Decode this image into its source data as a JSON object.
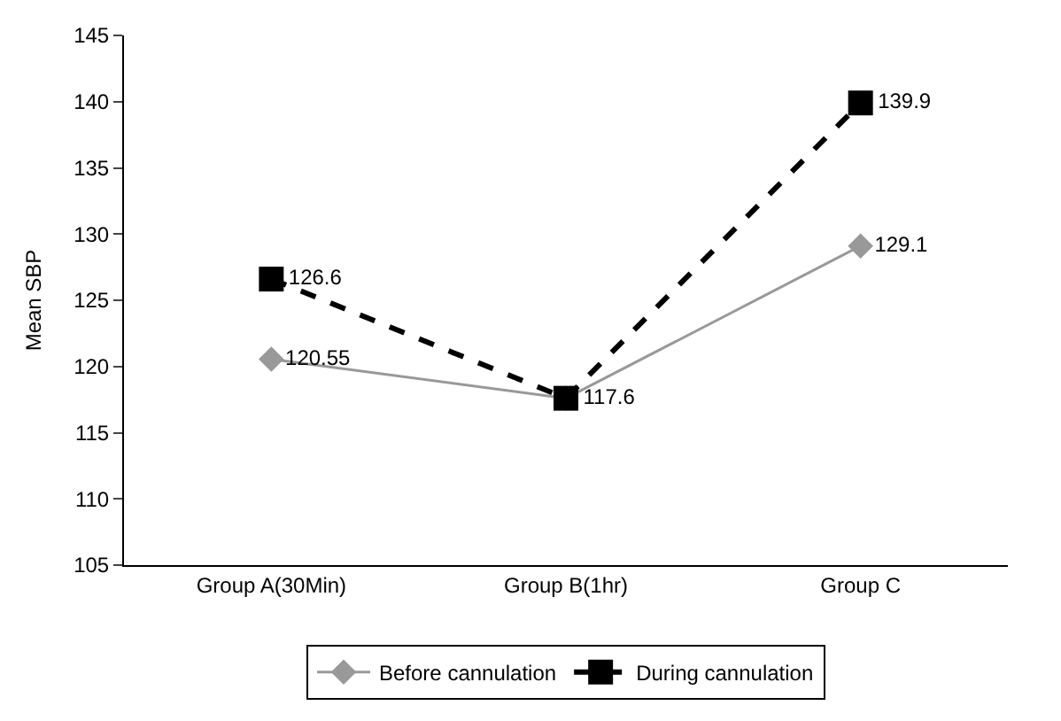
{
  "chart_data": {
    "type": "line",
    "ylabel": "Mean SBP",
    "categories": [
      "Group A(30Min)",
      "Group B(1hr)",
      "Group C"
    ],
    "series": [
      {
        "name": "Before cannulation",
        "color": "#999999",
        "values": [
          120.55,
          117.6,
          129.1
        ],
        "marker": "diamond",
        "line_style": "solid",
        "value_labels": [
          "120.55",
          null,
          "129.1"
        ]
      },
      {
        "name": "During cannulation",
        "color": "#000000",
        "values": [
          126.6,
          117.6,
          139.9
        ],
        "marker": "square",
        "line_style": "dashed",
        "value_labels": [
          "126.6",
          "117.6",
          "139.9"
        ]
      }
    ],
    "ylim": [
      105,
      145
    ],
    "yticks": [
      105,
      110,
      115,
      120,
      125,
      130,
      135,
      140,
      145
    ],
    "legend": "bottom"
  }
}
